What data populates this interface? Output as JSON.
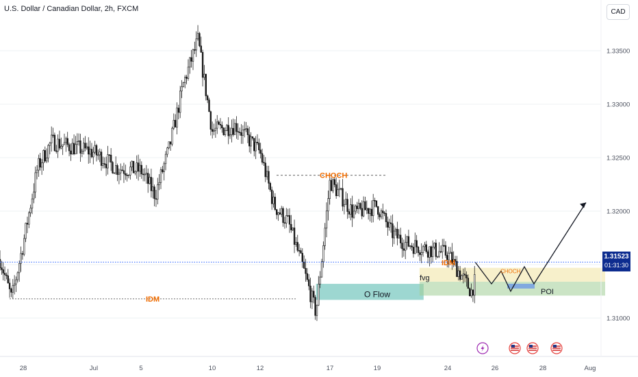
{
  "header": {
    "title": "U.S. Dollar / Canadian Dollar, 2h, FXCM",
    "currency_button": "CAD"
  },
  "price_tag": {
    "price": "1.31523",
    "countdown": "01:31:30"
  },
  "colors": {
    "up": "#1a1a1a",
    "down": "#1a1a1a",
    "orange": "#ef6c00",
    "price_line": "#2962ff",
    "dark_blue": "#0d2c8f",
    "path": "#131722"
  },
  "chart_data": {
    "type": "candlestick",
    "symbol": "USDCAD",
    "timeframe": "2h",
    "ylim": [
      1.308,
      1.339
    ],
    "y_ticks": [
      "1.31000",
      "1.31500",
      "1.32000",
      "1.32500",
      "1.33000",
      "1.33500"
    ],
    "x_ticks": [
      "28",
      "Jul",
      "5",
      "10",
      "12",
      "17",
      "19",
      "24",
      "26",
      "28",
      "Aug"
    ],
    "x_tick_dates": [
      "Jun 28",
      "Jul 3",
      "Jul 5",
      "Jul 10",
      "Jul 12",
      "Jul 17",
      "Jul 19",
      "Jul 24",
      "Jul 26",
      "Jul 28",
      "Aug 1"
    ],
    "current_price": 1.31523,
    "price_path_close": [
      [
        "Jun 26",
        1.3155
      ],
      [
        "Jun 27",
        1.3118
      ],
      [
        "Jun 28",
        1.317
      ],
      [
        "Jun 29",
        1.324
      ],
      [
        "Jun 30",
        1.3265
      ],
      [
        "Jul 3",
        1.3255
      ],
      [
        "Jul 4",
        1.324
      ],
      [
        "Jul 5",
        1.3238
      ],
      [
        "Jul 6",
        1.3215
      ],
      [
        "Jul 7",
        1.326
      ],
      [
        "Jul 8",
        1.332
      ],
      [
        "Jul 9",
        1.336
      ],
      [
        "Jul 10",
        1.3275
      ],
      [
        "Jul 11",
        1.328
      ],
      [
        "Jul 12",
        1.3255
      ],
      [
        "Jul 13",
        1.3205
      ],
      [
        "Jul 14",
        1.319
      ],
      [
        "Jul 15",
        1.315
      ],
      [
        "Jul 16",
        1.3105
      ],
      [
        "Jul 17",
        1.3228
      ],
      [
        "Jul 18",
        1.3198
      ],
      [
        "Jul 19",
        1.3205
      ],
      [
        "Jul 20",
        1.318
      ],
      [
        "Jul 21",
        1.317
      ],
      [
        "Jul 24",
        1.316
      ],
      [
        "Jul 25",
        1.3125
      ],
      [
        "Jul 26",
        1.3185
      ],
      [
        "Jul 27",
        1.3225
      ],
      [
        "Jul 28",
        1.3195
      ],
      [
        "Jul 31",
        1.316
      ],
      [
        "Aug 1",
        1.3152
      ]
    ],
    "annotations": {
      "choch_top": {
        "text": "CHOCH",
        "price": 1.32335
      },
      "choch_small": {
        "text": "CHOCH",
        "price": 1.3144
      },
      "idm_left": {
        "text": "IDM",
        "price": 1.3118
      },
      "idm_right": {
        "text": "IDM",
        "price": 1.3152
      },
      "order_flow_zone": {
        "text": "O Flow",
        "price_top": 1.3132,
        "price_bottom": 1.3117
      },
      "fvg_zone": {
        "text": "fvg",
        "price_top": 1.3147,
        "price_bottom": 1.3134
      },
      "poi_zone": {
        "text": "POI",
        "price_top": 1.3134,
        "price_bottom": 1.3121
      },
      "projection_path": [
        1.3152,
        1.3132,
        1.3144,
        1.3125,
        1.3148,
        1.3132,
        1.3208
      ]
    },
    "event_icons": [
      "lightning-icon",
      "us-flag-icon",
      "us-flag-icon",
      "us-flag-icon"
    ]
  }
}
